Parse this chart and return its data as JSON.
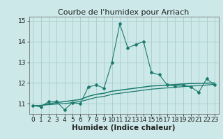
{
  "title": "Courbe de l'humidex pour Arriach",
  "xlabel": "Humidex (Indice chaleur)",
  "bg_color": "#cce8e8",
  "grid_color": "#aacccc",
  "line_color": "#1a7a6e",
  "x_values": [
    0,
    1,
    2,
    3,
    4,
    5,
    6,
    7,
    8,
    9,
    10,
    11,
    12,
    13,
    14,
    15,
    16,
    17,
    18,
    19,
    20,
    21,
    22,
    23
  ],
  "series1": [
    10.9,
    10.85,
    11.1,
    11.1,
    10.7,
    11.05,
    11.0,
    11.8,
    11.9,
    11.75,
    13.0,
    14.85,
    13.7,
    13.85,
    14.0,
    12.5,
    12.4,
    11.9,
    11.85,
    11.9,
    11.8,
    11.55,
    12.2,
    11.9
  ],
  "series2": [
    10.9,
    10.9,
    11.0,
    11.05,
    11.1,
    11.15,
    11.2,
    11.35,
    11.45,
    11.5,
    11.6,
    11.65,
    11.7,
    11.75,
    11.8,
    11.85,
    11.87,
    11.9,
    11.92,
    11.95,
    11.97,
    11.98,
    11.99,
    12.0
  ],
  "series3": [
    10.9,
    10.92,
    10.95,
    10.98,
    11.0,
    11.05,
    11.1,
    11.2,
    11.3,
    11.35,
    11.45,
    11.5,
    11.55,
    11.6,
    11.65,
    11.7,
    11.73,
    11.76,
    11.79,
    11.82,
    11.85,
    11.87,
    11.9,
    11.93
  ],
  "ylim": [
    10.5,
    15.2
  ],
  "yticks": [
    11,
    12,
    13,
    14,
    15
  ],
  "xticks": [
    0,
    1,
    2,
    3,
    4,
    5,
    6,
    7,
    8,
    9,
    10,
    11,
    12,
    13,
    14,
    15,
    16,
    17,
    18,
    19,
    20,
    21,
    22,
    23
  ],
  "title_fontsize": 8,
  "label_fontsize": 7.5,
  "tick_fontsize": 6.5
}
